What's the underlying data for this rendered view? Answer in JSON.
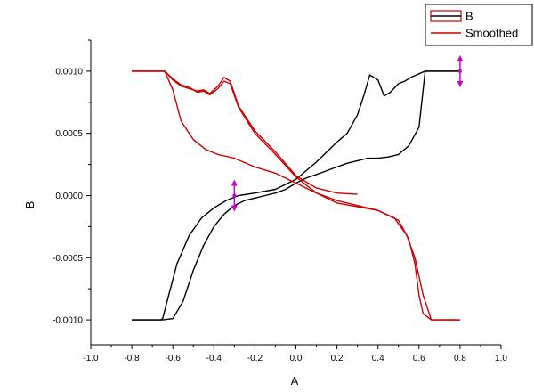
{
  "chart_data": {
    "type": "line",
    "xlabel": "A",
    "ylabel": "B",
    "xlim": [
      -1.0,
      1.0
    ],
    "ylim": [
      -0.0012,
      0.00125
    ],
    "x_ticks": [
      "-1.0",
      "-0.8",
      "-0.6",
      "-0.4",
      "-0.2",
      "0.0",
      "0.2",
      "0.4",
      "0.6",
      "0.8",
      "1.0"
    ],
    "x_tick_values": [
      -1.0,
      -0.8,
      -0.6,
      -0.4,
      -0.2,
      0.0,
      0.2,
      0.4,
      0.6,
      0.8,
      1.0
    ],
    "y_ticks": [
      "-0.0010",
      "-0.0005",
      "0.0000",
      "0.0005",
      "0.0010"
    ],
    "y_tick_values": [
      -0.001,
      -0.0005,
      0.0,
      0.0005,
      0.001
    ],
    "legend_position": "top-right",
    "series": [
      {
        "name": "B",
        "color": "#000000",
        "x": [
          -0.8,
          -0.65,
          -0.6,
          -0.55,
          -0.5,
          -0.45,
          -0.4,
          -0.35,
          -0.3,
          -0.25,
          -0.2,
          -0.15,
          -0.1,
          -0.05,
          0.0,
          0.05,
          0.1,
          0.15,
          0.2,
          0.25,
          0.3,
          0.35,
          0.4,
          0.45,
          0.5,
          0.55,
          0.6,
          0.63,
          0.8
        ],
        "y": [
          -0.001,
          -0.001,
          -0.00099,
          -0.00085,
          -0.0006,
          -0.0004,
          -0.00025,
          -0.00015,
          -8e-05,
          -4e-05,
          -2e-05,
          0.0,
          2e-05,
          5e-05,
          0.0001,
          0.00014,
          0.00017,
          0.0002,
          0.00023,
          0.00026,
          0.00028,
          0.0003,
          0.0003,
          0.00031,
          0.00033,
          0.0004,
          0.00055,
          0.001,
          0.001
        ]
      },
      {
        "name": "B",
        "color": "#000000",
        "x": [
          -0.8,
          -0.66,
          -0.65,
          -0.62,
          -0.58,
          -0.52,
          -0.46,
          -0.4,
          -0.34,
          -0.28,
          -0.2,
          -0.1,
          0.0,
          0.05,
          0.1,
          0.15,
          0.2,
          0.25,
          0.3,
          0.33,
          0.36,
          0.4,
          0.43,
          0.46,
          0.5,
          0.53,
          0.56,
          0.6,
          0.63,
          0.8
        ],
        "y": [
          -0.001,
          -0.001,
          -0.00099,
          -0.0008,
          -0.00055,
          -0.00032,
          -0.00018,
          -0.0001,
          -4e-05,
          0.0,
          2e-05,
          5e-05,
          0.00013,
          0.0002,
          0.00027,
          0.00035,
          0.00043,
          0.0005,
          0.00065,
          0.0008,
          0.00097,
          0.00093,
          0.0008,
          0.00083,
          0.0009,
          0.00092,
          0.00095,
          0.00098,
          0.001,
          0.001
        ]
      },
      {
        "name": "Smoothed",
        "color": "#cc0000",
        "x": [
          -0.8,
          -0.64,
          -0.6,
          -0.56,
          -0.52,
          -0.48,
          -0.45,
          -0.42,
          -0.38,
          -0.35,
          -0.32,
          -0.28,
          -0.2,
          -0.1,
          0.0,
          0.1,
          0.2,
          0.3
        ],
        "y": [
          0.001,
          0.001,
          0.00093,
          0.00088,
          0.00086,
          0.00084,
          0.00085,
          0.00082,
          0.00088,
          0.00095,
          0.00092,
          0.00072,
          0.00052,
          0.00035,
          0.00016,
          6e-05,
          2e-05,
          1e-05
        ]
      },
      {
        "name": "Smoothed",
        "color": "#cc0000",
        "x": [
          -0.8,
          -0.64,
          -0.6,
          -0.56,
          -0.5,
          -0.44,
          -0.38,
          -0.3,
          -0.2,
          -0.1,
          0.0,
          0.1,
          0.2,
          0.3,
          0.4,
          0.5,
          0.55,
          0.58,
          0.6,
          0.62,
          0.66,
          0.8
        ],
        "y": [
          0.001,
          0.001,
          0.00085,
          0.0006,
          0.00045,
          0.00037,
          0.00033,
          0.0003,
          0.00023,
          0.00018,
          0.0001,
          2e-05,
          -6e-05,
          -9e-05,
          -0.00012,
          -0.0002,
          -0.00035,
          -0.00055,
          -0.0008,
          -0.00095,
          -0.001,
          -0.001
        ]
      },
      {
        "name": "Smoothed",
        "color": "#cc0000",
        "x": [
          -0.8,
          -0.64,
          -0.6,
          -0.56,
          -0.52,
          -0.48,
          -0.45,
          -0.42,
          -0.38,
          -0.35,
          -0.32,
          -0.28,
          -0.2,
          -0.1,
          0.0,
          0.1,
          0.2,
          0.3,
          0.4,
          0.48,
          0.54,
          0.58,
          0.62,
          0.66,
          0.8
        ],
        "y": [
          0.001,
          0.001,
          0.00094,
          0.00089,
          0.00087,
          0.00083,
          0.00084,
          0.00081,
          0.00086,
          0.00092,
          0.0009,
          0.00071,
          0.0005,
          0.00033,
          0.00015,
          2e-05,
          -4e-05,
          -8e-05,
          -0.00012,
          -0.00018,
          -0.00032,
          -0.0005,
          -0.0008,
          -0.001,
          -0.001
        ]
      }
    ],
    "legend": [
      {
        "label": "B",
        "color": "#000000"
      },
      {
        "label": "Smoothed",
        "color": "#cc0000"
      }
    ],
    "markers": [
      {
        "x": -0.3,
        "y": 0.0,
        "color": "#cc00cc"
      },
      {
        "x": 0.8,
        "y": 0.001,
        "color": "#cc00cc"
      }
    ]
  }
}
